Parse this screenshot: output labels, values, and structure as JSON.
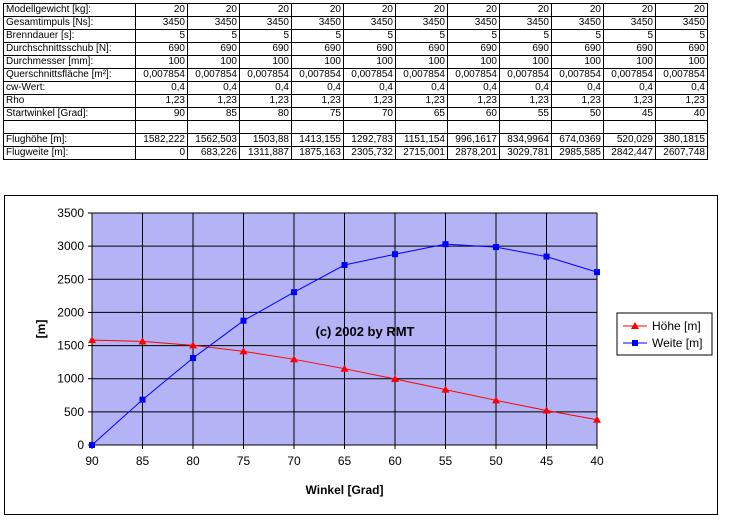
{
  "table": {
    "rows": [
      {
        "label": "Modellgewicht [kg]:",
        "values": [
          "20",
          "20",
          "20",
          "20",
          "20",
          "20",
          "20",
          "20",
          "20",
          "20",
          "20"
        ]
      },
      {
        "label": "Gesamtimpuls [Ns]:",
        "values": [
          "3450",
          "3450",
          "3450",
          "3450",
          "3450",
          "3450",
          "3450",
          "3450",
          "3450",
          "3450",
          "3450"
        ]
      },
      {
        "label": "Brenndauer [s]:",
        "values": [
          "5",
          "5",
          "5",
          "5",
          "5",
          "5",
          "5",
          "5",
          "5",
          "5",
          "5"
        ]
      },
      {
        "label": "Durchschnittsschub [N]:",
        "values": [
          "690",
          "690",
          "690",
          "690",
          "690",
          "690",
          "690",
          "690",
          "690",
          "690",
          "690"
        ]
      },
      {
        "label": "Durchmesser [mm]:",
        "values": [
          "100",
          "100",
          "100",
          "100",
          "100",
          "100",
          "100",
          "100",
          "100",
          "100",
          "100"
        ]
      },
      {
        "label": "Querschnittsfläche [m²]:",
        "values": [
          "0,007854",
          "0,007854",
          "0,007854",
          "0,007854",
          "0,007854",
          "0,007854",
          "0,007854",
          "0,007854",
          "0,007854",
          "0,007854",
          "0,007854"
        ]
      },
      {
        "label": "cw-Wert:",
        "values": [
          "0,4",
          "0,4",
          "0,4",
          "0,4",
          "0,4",
          "0,4",
          "0,4",
          "0,4",
          "0,4",
          "0,4",
          "0,4"
        ]
      },
      {
        "label": "Rho",
        "values": [
          "1,23",
          "1,23",
          "1,23",
          "1,23",
          "1,23",
          "1,23",
          "1,23",
          "1,23",
          "1,23",
          "1,23",
          "1,23"
        ]
      },
      {
        "label": "Startwinkel [Grad]:",
        "values": [
          "90",
          "85",
          "80",
          "75",
          "70",
          "65",
          "60",
          "55",
          "50",
          "45",
          "40"
        ]
      },
      {
        "label": "",
        "values": [
          "",
          "",
          "",
          "",
          "",
          "",
          "",
          "",
          "",
          "",
          ""
        ]
      },
      {
        "label": "Flughöhe [m]:",
        "values": [
          "1582,222",
          "1562,503",
          "1503,88",
          "1413,155",
          "1292,783",
          "1151,154",
          "996,1617",
          "834,9964",
          "674,0369",
          "520,029",
          "380,1815"
        ]
      },
      {
        "label": "Flugweite [m]:",
        "values": [
          "0",
          "683,226",
          "1311,887",
          "1875,163",
          "2305,732",
          "2715,001",
          "2878,201",
          "3029,781",
          "2985,585",
          "2842,447",
          "2607,748"
        ]
      }
    ]
  },
  "chart_data": {
    "type": "line",
    "x": [
      90,
      85,
      80,
      75,
      70,
      65,
      60,
      55,
      50,
      45,
      40
    ],
    "xlabel": "Winkel [Grad]",
    "ylabel": "[m]",
    "ylim": [
      0,
      3500
    ],
    "yticks": [
      0,
      500,
      1000,
      1500,
      2000,
      2500,
      3000,
      3500
    ],
    "xreversed": true,
    "grid": true,
    "legend_position": "right",
    "plot_background": "#b3b3f5",
    "annotation": "(c) 2002 by RMT",
    "series": [
      {
        "name": "Höhe [m]",
        "color": "#ff0000",
        "marker": "triangle",
        "values": [
          1582.222,
          1562.503,
          1503.88,
          1413.155,
          1292.783,
          1151.154,
          996.1617,
          834.9964,
          674.0369,
          520.029,
          380.1815
        ]
      },
      {
        "name": "Weite [m]",
        "color": "#0000ff",
        "marker": "square",
        "values": [
          0,
          683.226,
          1311.887,
          1875.163,
          2305.732,
          2715.001,
          2878.201,
          3029.781,
          2985.585,
          2842.447,
          2607.748
        ]
      }
    ]
  }
}
